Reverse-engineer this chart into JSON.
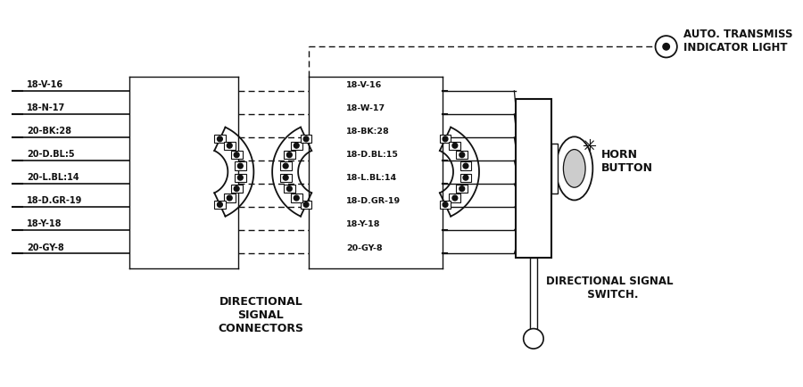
{
  "bg_color": "#ffffff",
  "line_color": "#111111",
  "wire_labels_left": [
    "18-V-16",
    "18-N-17",
    "20-BK:28",
    "20-D.BL:5",
    "20-L.BL:14",
    "18-D.GR-19",
    "18-Y-18",
    "20-GY-8"
  ],
  "wire_labels_mid": [
    "18-V-16",
    "18-W-17",
    "18-BK:28",
    "18-D.BL:15",
    "18-L.BL:14",
    "18-D.GR-19",
    "18-Y-18",
    "20-GY-8"
  ],
  "connector_label": "DIRECTIONAL\nSIGNAL\nCONNECTORS",
  "horn_label": "HORN\nBUTTON",
  "dir_sig_label": "DIRECTIONAL SIGNAL\n  SWITCH.",
  "auto_trans_label": "AUTO. TRANSMISS\nINDICATOR LIGHT"
}
